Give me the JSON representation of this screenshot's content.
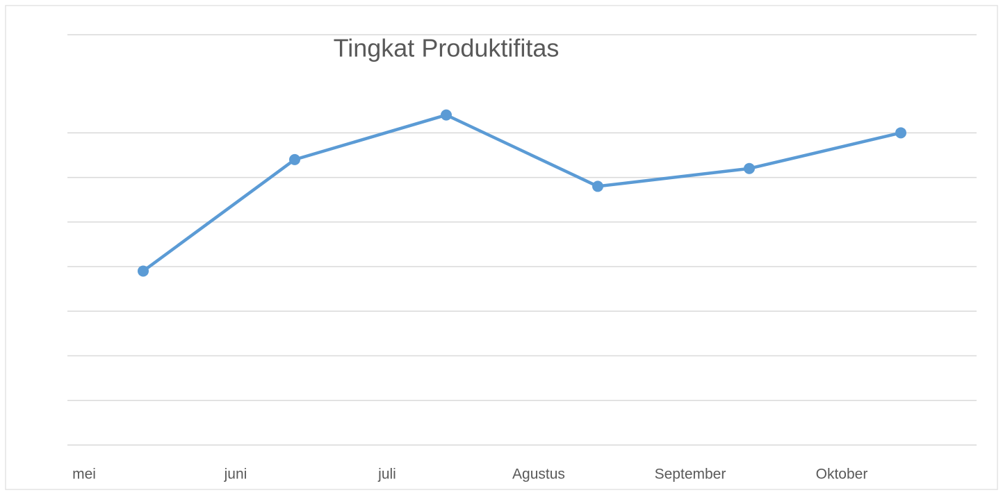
{
  "chart_data": {
    "type": "line",
    "title": "Tingkat Produktifitas",
    "categories": [
      "mei",
      "juni",
      "juli",
      "Agustus",
      "September",
      "Oktober"
    ],
    "series": [
      {
        "name": "Tingkat Produktifitas",
        "color": "#5b9bd5",
        "values": [
          3.9,
          6.4,
          7.4,
          5.8,
          6.2,
          7.0
        ]
      }
    ],
    "ylim": [
      0,
      9.2
    ],
    "yticks": [
      0,
      1,
      2,
      3,
      4,
      5,
      6,
      7
    ],
    "grid": true
  }
}
